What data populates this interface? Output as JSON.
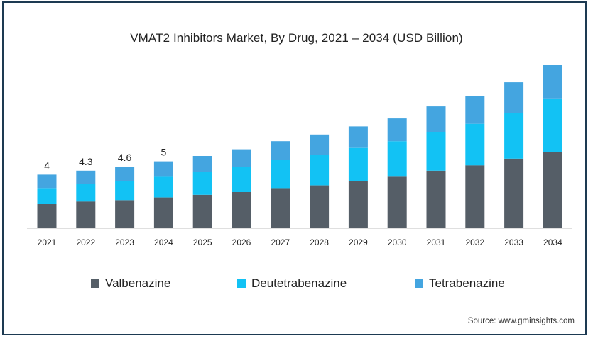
{
  "chart_data": {
    "type": "bar",
    "stacked": true,
    "title": "VMAT2 Inhibitors Market, By Drug, 2021 – 2034 (USD Billion)",
    "categories": [
      "2021",
      "2022",
      "2023",
      "2024",
      "2025",
      "2026",
      "2027",
      "2028",
      "2029",
      "2030",
      "2031",
      "2032",
      "2033",
      "2034"
    ],
    "series": [
      {
        "name": "Valbenazine",
        "color": "#555e67",
        "values": [
          1.8,
          2.0,
          2.1,
          2.3,
          2.5,
          2.7,
          3.0,
          3.2,
          3.5,
          3.9,
          4.3,
          4.7,
          5.2,
          5.7
        ]
      },
      {
        "name": "Deutetrabenazine",
        "color": "#12c2f4",
        "values": [
          1.2,
          1.3,
          1.4,
          1.6,
          1.7,
          1.9,
          2.1,
          2.3,
          2.5,
          2.6,
          2.9,
          3.1,
          3.4,
          4.0
        ]
      },
      {
        "name": "Tetrabenazine",
        "color": "#44a5e0",
        "values": [
          1.0,
          1.0,
          1.1,
          1.1,
          1.2,
          1.3,
          1.4,
          1.5,
          1.6,
          1.7,
          1.9,
          2.1,
          2.3,
          2.5
        ]
      }
    ],
    "data_labels": [
      "4",
      "4.3",
      "4.6",
      "5"
    ],
    "ylim": [
      0,
      13.5
    ],
    "grid": false,
    "legend_position": "bottom"
  },
  "legend": [
    "Valbenazine",
    "Deutetrabenazine",
    "Tetrabenazine"
  ],
  "source": "Source: www.gminsights.com"
}
